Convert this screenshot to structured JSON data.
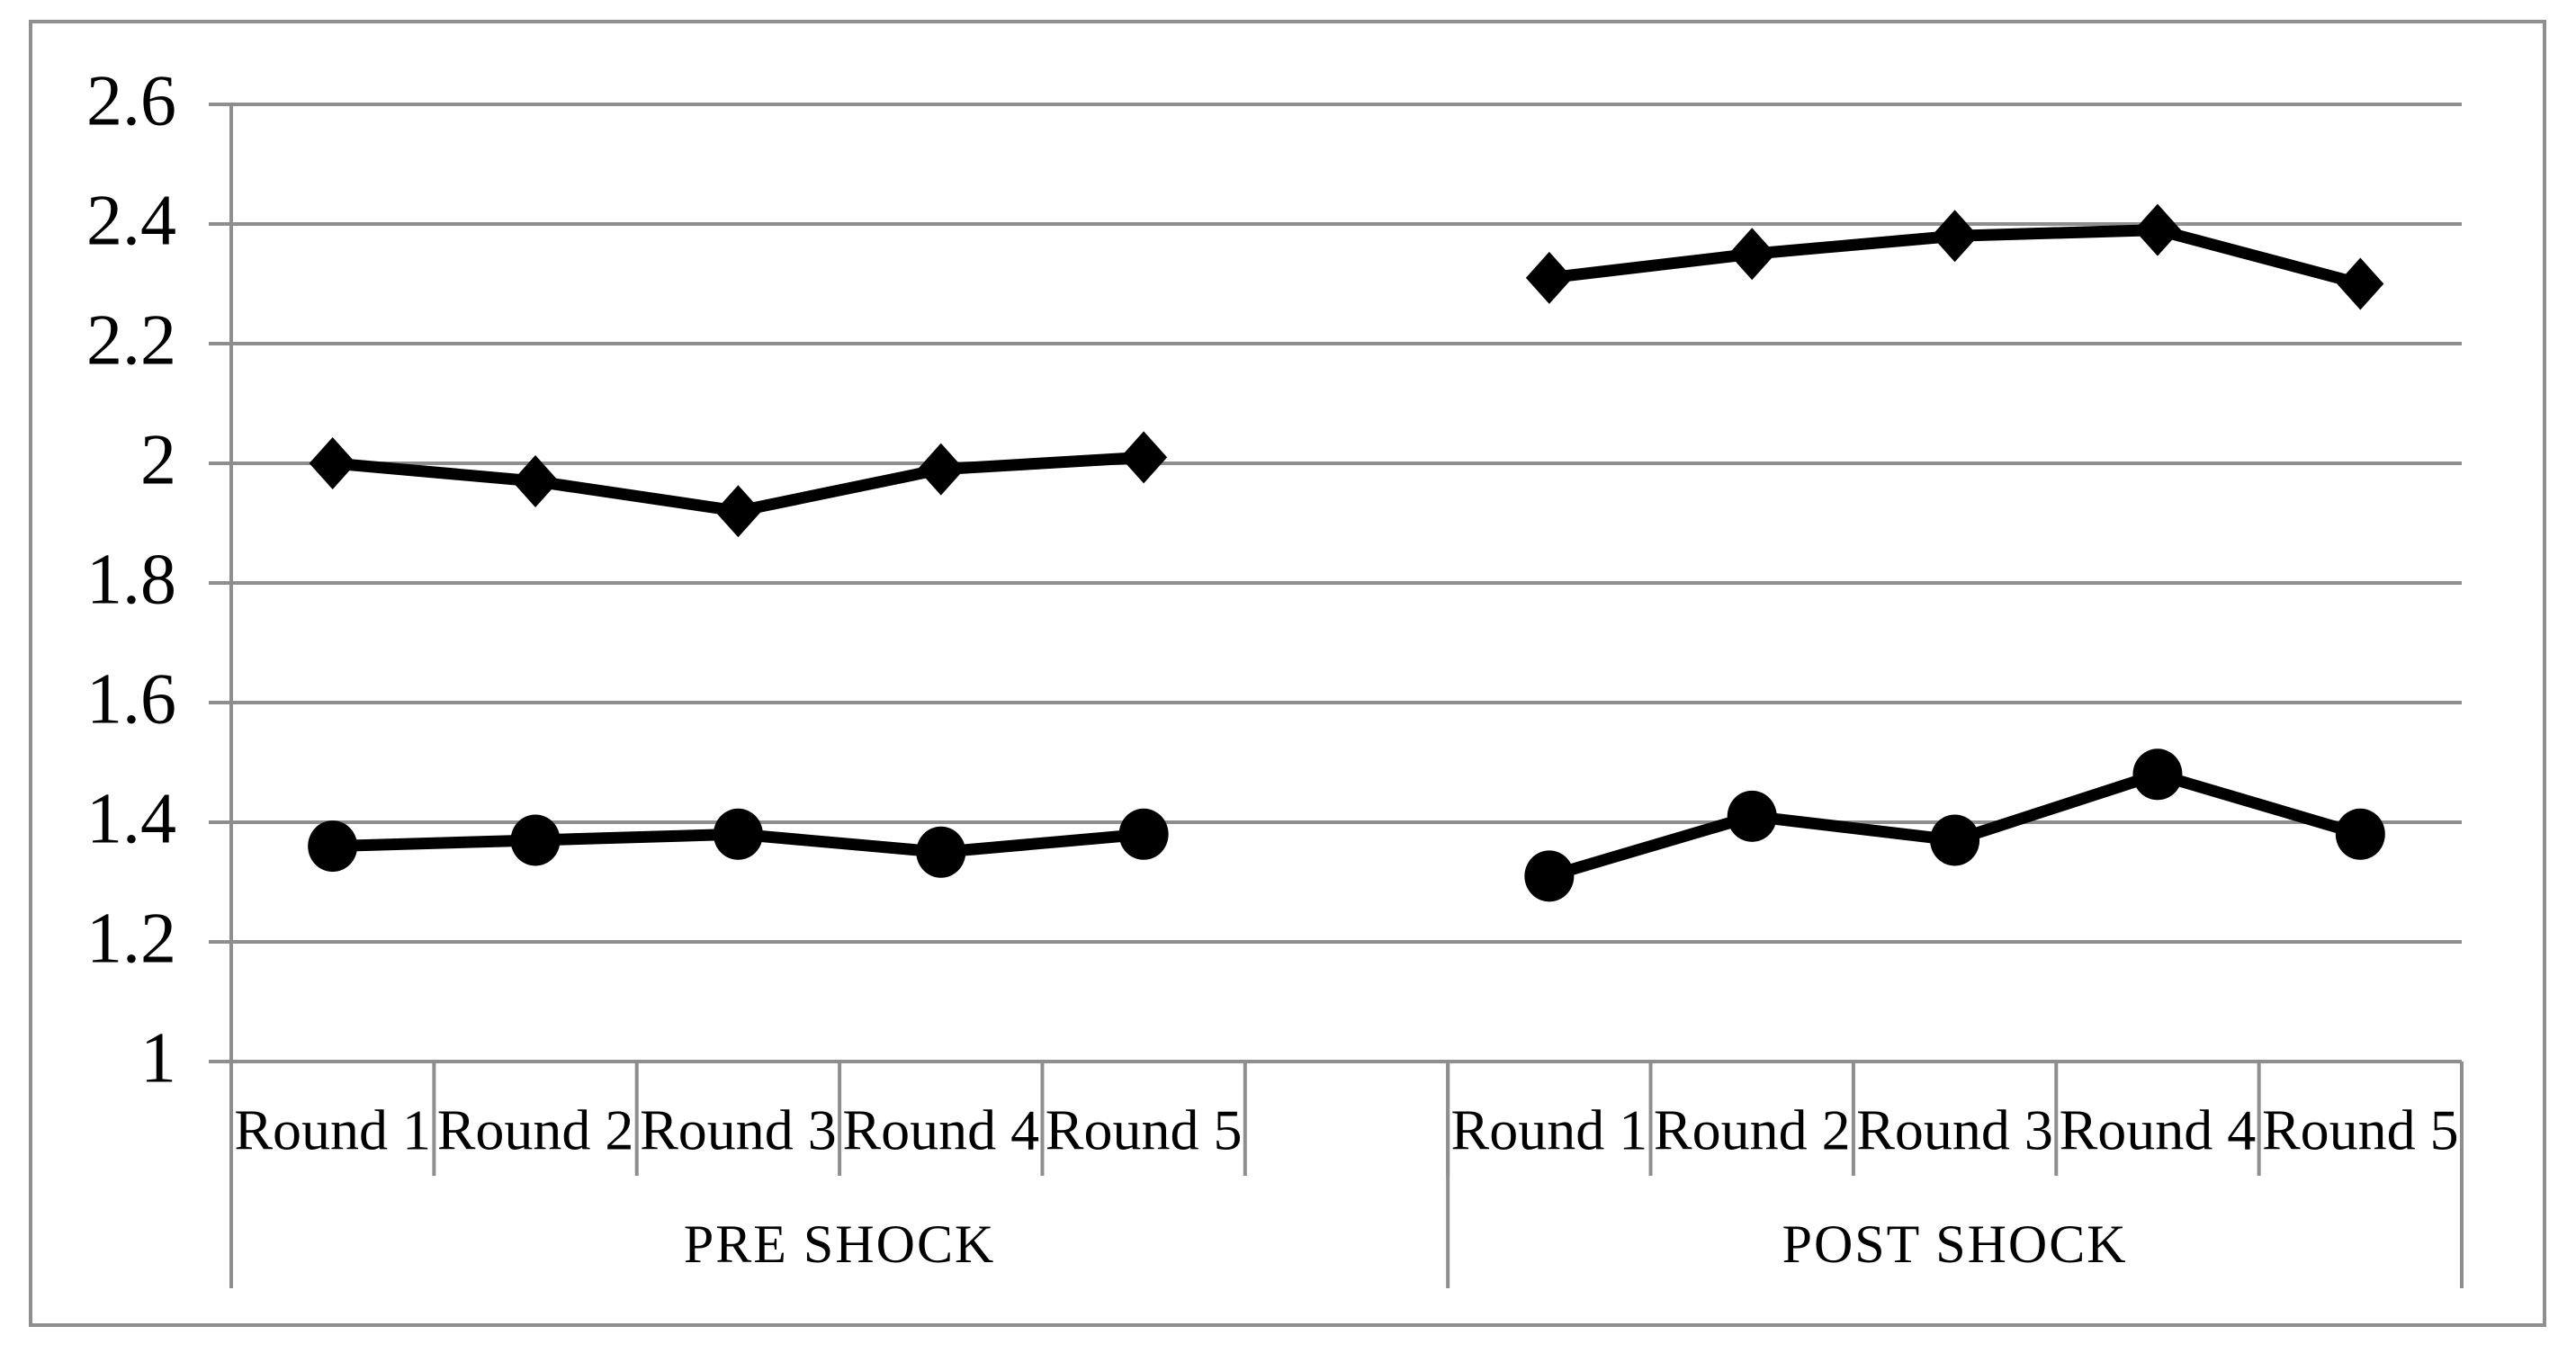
{
  "chart_data": {
    "type": "line",
    "title": "",
    "y_axis": {
      "min": 1,
      "max": 2.6,
      "step": 0.2,
      "tick_labels": [
        "1",
        "1.2",
        "1.4",
        "1.6",
        "1.8",
        "2",
        "2.2",
        "2.4",
        "2.6"
      ]
    },
    "x_axis": {
      "groups": [
        {
          "label": "PRE SHOCK",
          "categories": [
            "Round 1",
            "Round 2",
            "Round 3",
            "Round 4",
            "Round 5"
          ]
        },
        {
          "label": "POST SHOCK",
          "categories": [
            "Round 1",
            "Round 2",
            "Round 3",
            "Round 4",
            "Round 5"
          ]
        }
      ],
      "spacer_slots_between_groups": 1
    },
    "series": [
      {
        "id": "diamond-series",
        "marker": "diamond",
        "color": "#000000",
        "values": [
          [
            2.0,
            1.97,
            1.92,
            1.99,
            2.01
          ],
          [
            2.31,
            2.35,
            2.38,
            2.39,
            2.3
          ]
        ]
      },
      {
        "id": "circle-series",
        "marker": "circle",
        "color": "#000000",
        "values": [
          [
            1.36,
            1.37,
            1.38,
            1.35,
            1.38
          ],
          [
            1.31,
            1.41,
            1.37,
            1.48,
            1.38
          ]
        ]
      }
    ],
    "legend": "none",
    "grid": true,
    "styles": {
      "gridline_color": "#8e8e8e",
      "axis_color": "#8e8e8e",
      "border_color": "#8e8e8e",
      "series_color": "#000000",
      "text_color": "#000000",
      "background": "#ffffff"
    }
  }
}
